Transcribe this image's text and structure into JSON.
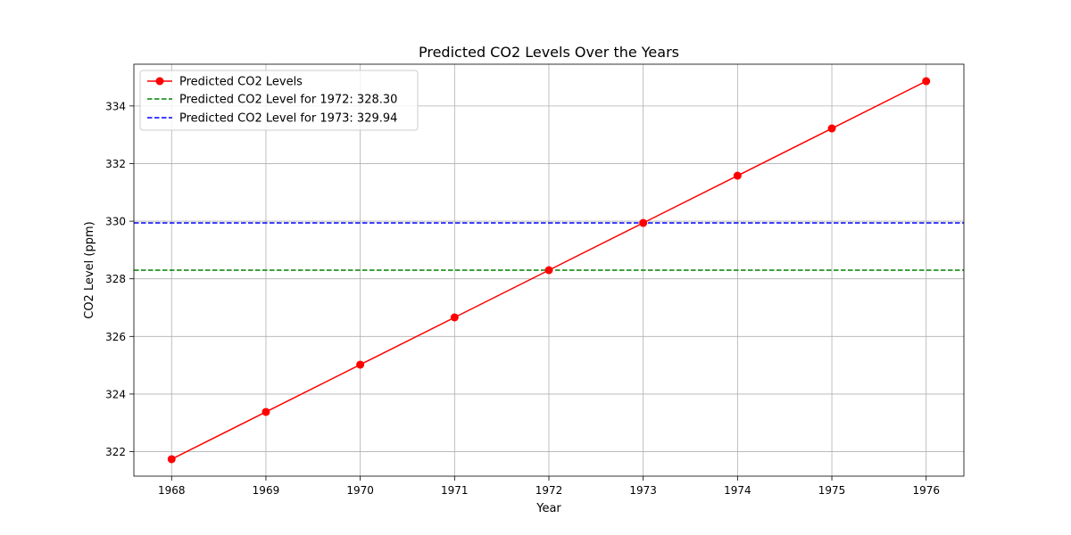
{
  "chart_data": {
    "type": "line",
    "title": "Predicted CO2 Levels Over the Years",
    "xlabel": "Year",
    "ylabel": "CO2 Level (ppm)",
    "xlim": [
      1967.6,
      1976.4
    ],
    "ylim": [
      321.15,
      335.45
    ],
    "xticks": [
      1968,
      1969,
      1970,
      1971,
      1972,
      1973,
      1974,
      1975,
      1976
    ],
    "yticks": [
      322,
      324,
      326,
      328,
      330,
      332,
      334
    ],
    "grid": true,
    "legend_position": "top-left",
    "series": [
      {
        "name": "Predicted CO2 Levels",
        "color": "#ff0000",
        "style": "solid",
        "marker": "circle",
        "x": [
          1968,
          1969,
          1970,
          1971,
          1972,
          1973,
          1974,
          1975,
          1976
        ],
        "y": [
          321.74,
          323.38,
          325.02,
          326.66,
          328.3,
          329.94,
          331.58,
          333.22,
          334.86
        ]
      }
    ],
    "hlines": [
      {
        "name": "Predicted CO2 Level for 1972: 328.30",
        "y": 328.3,
        "color": "#008000",
        "style": "dashed"
      },
      {
        "name": "Predicted CO2 Level for 1973: 329.94",
        "y": 329.94,
        "color": "#0000ff",
        "style": "dashed"
      }
    ]
  }
}
